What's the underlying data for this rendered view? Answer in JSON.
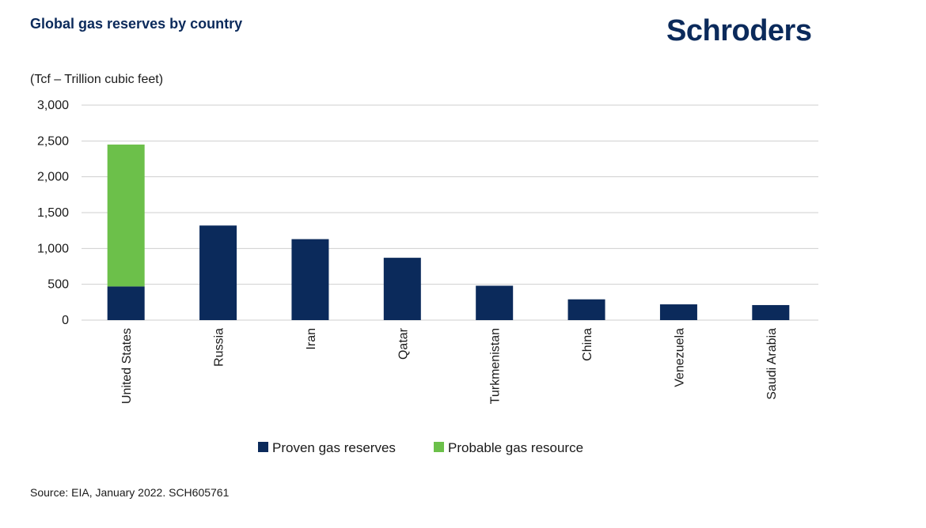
{
  "header": {
    "title": "Global gas reserves by country",
    "brand": "Schroders"
  },
  "footer": {
    "source": "Source: EIA, January 2022. SCH605761"
  },
  "colors": {
    "proven": "#0b2a5b",
    "probable": "#6cc04a",
    "grid": "#cfcfcf",
    "text": "#1a1a1a"
  },
  "chart_data": {
    "type": "bar",
    "stacked": true,
    "title": "Global gas reserves by country",
    "ylabel": "(Tcf – Trillion cubic feet)",
    "xlabel": "",
    "ylim": [
      0,
      3000
    ],
    "yticks": [
      0,
      500,
      1000,
      1500,
      2000,
      2500,
      3000
    ],
    "ytick_labels": [
      "0",
      "500",
      "1,000",
      "1,500",
      "2,000",
      "2,500",
      "3,000"
    ],
    "categories": [
      "United States",
      "Russia",
      "Iran",
      "Qatar",
      "Turkmenistan",
      "China",
      "Venezuela",
      "Saudi Arabia"
    ],
    "series": [
      {
        "name": "Proven gas reserves",
        "color": "#0b2a5b",
        "values": [
          470,
          1320,
          1130,
          870,
          480,
          290,
          220,
          210
        ]
      },
      {
        "name": "Probable gas resource",
        "color": "#6cc04a",
        "values": [
          1980,
          0,
          0,
          0,
          0,
          0,
          0,
          0
        ]
      }
    ],
    "legend": "bottom",
    "grid": true
  }
}
